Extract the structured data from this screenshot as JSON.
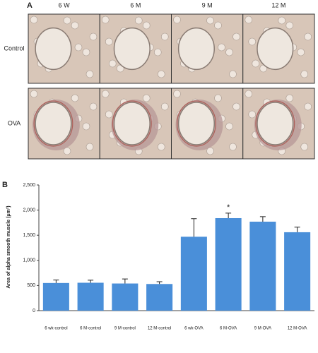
{
  "panel_a": {
    "label": "A",
    "columns": [
      "6 W",
      "6 M",
      "9 M",
      "12 M"
    ],
    "rows": [
      "Control",
      "OVA"
    ]
  },
  "chart_data": {
    "type": "bar",
    "panel_label": "B",
    "y_label": "Area of alpha smooth muscle (μm²)",
    "categories": [
      "6 wk-control",
      "6 M-control",
      "9 M-control",
      "12 M-control",
      "6 wk-OVA",
      "6 M-OVA",
      "9 M-OVA",
      "12 M-OVA"
    ],
    "values": [
      550,
      555,
      540,
      530,
      1470,
      1840,
      1770,
      1560
    ],
    "errors": [
      60,
      50,
      90,
      45,
      360,
      100,
      100,
      100
    ],
    "color": "#4a8fd9",
    "ylim": [
      0,
      2500
    ],
    "yticks": [
      0,
      500,
      {
        "value": 1000,
        "label": "1,000"
      },
      {
        "value": 1500,
        "label": "1,500"
      },
      {
        "value": 2000,
        "label": "2,000"
      },
      {
        "value": 2500,
        "label": "2,500"
      }
    ],
    "annotations": [
      {
        "text": "*",
        "category": 5
      }
    ]
  }
}
